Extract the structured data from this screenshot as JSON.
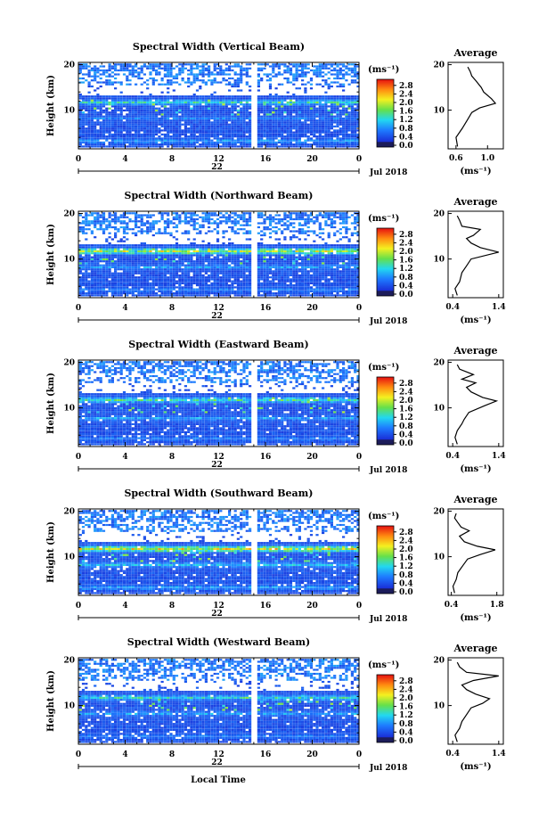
{
  "figure": {
    "common_xlabel": "Local Time",
    "avg_title": "Average",
    "colorbar_unit": "(ms⁻¹)",
    "avg_xlabel": "(ms⁻¹)",
    "ylabel": "Height (km)",
    "month": "Jul 2018",
    "day": "22",
    "x_ticks": [
      "0",
      "4",
      "8",
      "12",
      "16",
      "20",
      "0"
    ],
    "y_ticks": [
      "20",
      "10"
    ],
    "colorbar_ticks": [
      "2.8",
      "2.4",
      "2.0",
      "1.6",
      "1.2",
      "0.8",
      "0.4",
      "0.0"
    ],
    "avg_y_ticks": [
      "20",
      "10"
    ]
  },
  "chart_data": [
    {
      "type": "heatmap",
      "title": "Spectral Width (Vertical Beam)",
      "xlabel": "",
      "ylabel": "Height (km)",
      "xlim": [
        0,
        24
      ],
      "ylim": [
        1.5,
        20.5
      ],
      "color_range": [
        0.0,
        3.0
      ],
      "data_gap_hour": 15.0,
      "features": [
        {
          "height_km": 11.5,
          "value": 1.6
        },
        {
          "height_km": 8.0,
          "value": 1.0
        },
        {
          "height_km": 3.0,
          "value": 1.2
        }
      ],
      "average_profile": {
        "xlim": [
          0.5,
          1.2
        ],
        "x_ticks": [
          "0.6",
          "1.0"
        ],
        "points": [
          [
            0.62,
            2
          ],
          [
            0.6,
            4
          ],
          [
            0.68,
            6
          ],
          [
            0.75,
            8
          ],
          [
            0.8,
            9.5
          ],
          [
            0.9,
            10.5
          ],
          [
            1.1,
            11.5
          ],
          [
            1.05,
            12.5
          ],
          [
            0.95,
            14
          ],
          [
            0.92,
            15
          ],
          [
            0.85,
            16.5
          ],
          [
            0.8,
            17.5
          ],
          [
            0.78,
            18.5
          ],
          [
            0.75,
            19.5
          ]
        ]
      }
    },
    {
      "type": "heatmap",
      "title": "Spectral Width (Northward Beam)",
      "xlabel": "",
      "ylabel": "Height (km)",
      "xlim": [
        0,
        24
      ],
      "ylim": [
        1.5,
        20.5
      ],
      "color_range": [
        0.0,
        3.0
      ],
      "data_gap_hour": 15.0,
      "features": [
        {
          "height_km": 11.5,
          "value": 2.4
        },
        {
          "height_km": 8.0,
          "value": 1.2
        },
        {
          "height_km": 3.0,
          "value": 1.0
        }
      ],
      "average_profile": {
        "xlim": [
          0.3,
          1.5
        ],
        "x_ticks": [
          "0.4",
          "1.4"
        ],
        "points": [
          [
            0.5,
            2
          ],
          [
            0.45,
            3.5
          ],
          [
            0.55,
            5
          ],
          [
            0.6,
            7
          ],
          [
            0.7,
            8.5
          ],
          [
            0.8,
            10
          ],
          [
            1.4,
            11.5
          ],
          [
            1.0,
            12.5
          ],
          [
            0.8,
            13.5
          ],
          [
            0.7,
            14.5
          ],
          [
            0.85,
            15.2
          ],
          [
            1.0,
            16.5
          ],
          [
            0.6,
            17.2
          ],
          [
            0.55,
            18.5
          ],
          [
            0.5,
            19.5
          ]
        ]
      }
    },
    {
      "type": "heatmap",
      "title": "Spectral Width (Eastward Beam)",
      "xlabel": "",
      "ylabel": "Height (km)",
      "xlim": [
        0,
        24
      ],
      "ylim": [
        1.5,
        20.5
      ],
      "color_range": [
        0.0,
        3.0
      ],
      "data_gap_hour": 15.0,
      "features": [
        {
          "height_km": 11.5,
          "value": 1.8
        },
        {
          "height_km": 7.5,
          "value": 1.2
        },
        {
          "height_km": 3.0,
          "value": 1.0
        }
      ],
      "average_profile": {
        "xlim": [
          0.3,
          1.5
        ],
        "x_ticks": [
          "0.4",
          "1.4"
        ],
        "points": [
          [
            0.5,
            2
          ],
          [
            0.45,
            3.5
          ],
          [
            0.5,
            5
          ],
          [
            0.6,
            6.5
          ],
          [
            0.65,
            7.5
          ],
          [
            0.75,
            9
          ],
          [
            1.1,
            10.5
          ],
          [
            1.35,
            11.5
          ],
          [
            1.05,
            12.3
          ],
          [
            0.8,
            13.5
          ],
          [
            0.7,
            14.5
          ],
          [
            0.9,
            15.5
          ],
          [
            0.6,
            16.3
          ],
          [
            0.85,
            17.3
          ],
          [
            0.55,
            18.5
          ],
          [
            0.5,
            19.5
          ]
        ]
      }
    },
    {
      "type": "heatmap",
      "title": "Spectral Width (Southward Beam)",
      "xlabel": "",
      "ylabel": "Height (km)",
      "xlim": [
        0,
        24
      ],
      "ylim": [
        1.5,
        20.5
      ],
      "color_range": [
        0.0,
        3.0
      ],
      "data_gap_hour": 15.0,
      "features": [
        {
          "height_km": 11.5,
          "value": 2.6
        },
        {
          "height_km": 8.0,
          "value": 1.4
        },
        {
          "height_km": 3.0,
          "value": 1.2
        }
      ],
      "average_profile": {
        "xlim": [
          0.3,
          2.0
        ],
        "x_ticks": [
          "0.4",
          "1.8"
        ],
        "points": [
          [
            0.5,
            2
          ],
          [
            0.45,
            3.5
          ],
          [
            0.55,
            5
          ],
          [
            0.6,
            6.5
          ],
          [
            0.75,
            8
          ],
          [
            0.9,
            9.5
          ],
          [
            1.3,
            10.5
          ],
          [
            1.75,
            11.5
          ],
          [
            1.2,
            12.3
          ],
          [
            0.8,
            13.3
          ],
          [
            0.65,
            14.5
          ],
          [
            0.95,
            15.7
          ],
          [
            0.7,
            16.5
          ],
          [
            0.6,
            17.5
          ],
          [
            0.5,
            18.5
          ],
          [
            0.55,
            19.5
          ]
        ]
      }
    },
    {
      "type": "heatmap",
      "title": "Spectral Width (Westward Beam)",
      "xlabel": "Local Time",
      "ylabel": "Height (km)",
      "xlim": [
        0,
        24
      ],
      "ylim": [
        1.5,
        20.5
      ],
      "color_range": [
        0.0,
        3.0
      ],
      "data_gap_hour": 15.0,
      "features": [
        {
          "height_km": 11.5,
          "value": 1.6
        },
        {
          "height_km": 8.0,
          "value": 1.2
        },
        {
          "height_km": 3.0,
          "value": 1.0
        }
      ],
      "average_profile": {
        "xlim": [
          0.3,
          1.5
        ],
        "x_ticks": [
          "0.4",
          "1.4"
        ],
        "points": [
          [
            0.5,
            2
          ],
          [
            0.45,
            3.5
          ],
          [
            0.55,
            5
          ],
          [
            0.6,
            6.5
          ],
          [
            0.7,
            8
          ],
          [
            0.8,
            9.5
          ],
          [
            1.05,
            10.5
          ],
          [
            1.2,
            11.5
          ],
          [
            0.9,
            12.5
          ],
          [
            0.7,
            13.5
          ],
          [
            0.6,
            14.5
          ],
          [
            0.85,
            15.5
          ],
          [
            1.4,
            16.5
          ],
          [
            0.7,
            17.3
          ],
          [
            0.55,
            18.5
          ],
          [
            0.5,
            19.5
          ]
        ]
      }
    }
  ]
}
